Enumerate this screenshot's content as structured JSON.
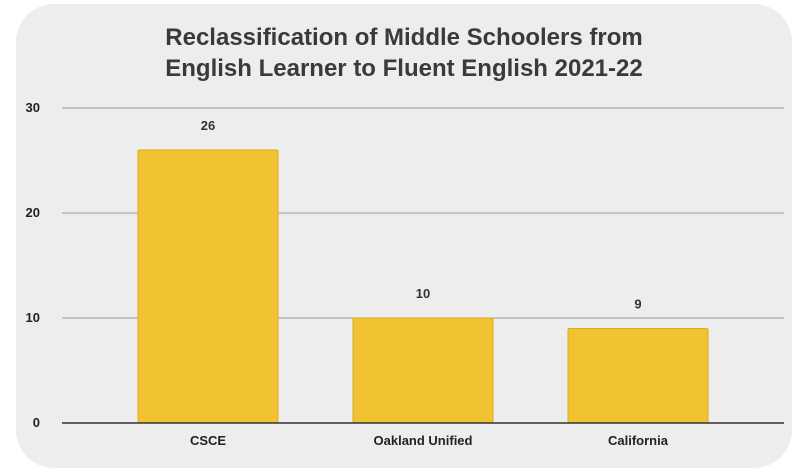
{
  "chart_data": {
    "type": "bar",
    "title_lines": [
      "Reclassification of Middle Schoolers from",
      "English Learner to Fluent English 2021-22"
    ],
    "categories": [
      "CSCE",
      "Oakland Unified",
      "California"
    ],
    "values": [
      26,
      10,
      9
    ],
    "data_labels": [
      "26",
      "10",
      "9"
    ],
    "ylim": [
      0,
      30
    ],
    "yticks": [
      0,
      10,
      20,
      30
    ],
    "xlabel": "",
    "ylabel": "",
    "grid": true,
    "legend": "none",
    "colors": {
      "bar": "#f1c232",
      "bar_edge": "#d9ad1f",
      "grid": "#9a9a9a",
      "baseline": "#333333",
      "background": "#ededed"
    }
  }
}
